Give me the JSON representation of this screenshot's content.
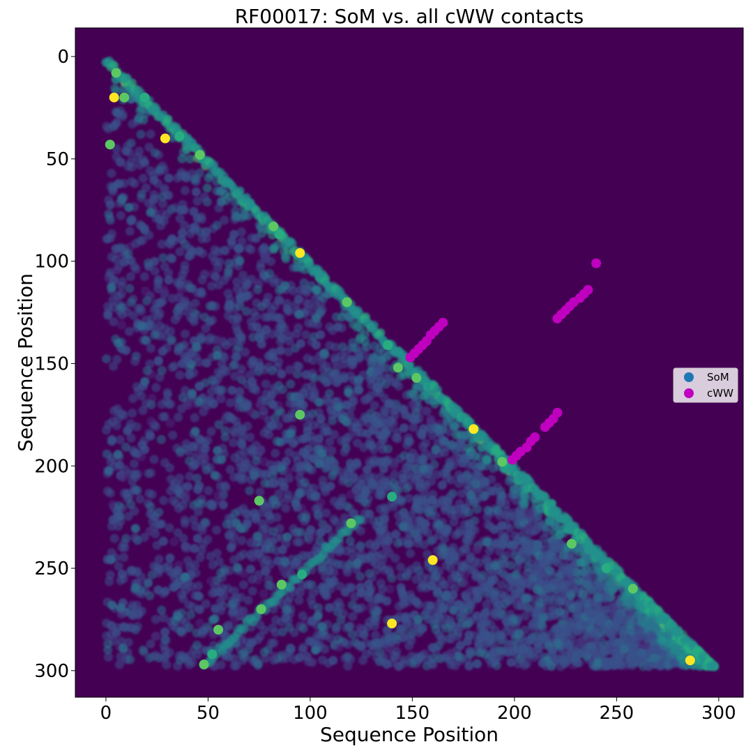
{
  "chart_data": {
    "type": "scatter",
    "title": "RF00017: SoM vs. all cWW contacts",
    "xlabel": "Sequence Position",
    "ylabel": "Sequence Position",
    "xlim": [
      -15,
      312
    ],
    "ylim": [
      313,
      -14
    ],
    "y_inverted": true,
    "x_ticks": [
      0,
      50,
      100,
      150,
      200,
      250,
      300
    ],
    "y_ticks": [
      0,
      50,
      100,
      150,
      200,
      250,
      300
    ],
    "grid": false,
    "background_color": "#440154",
    "legend_position": "center-right",
    "series": [
      {
        "name": "SoM",
        "color": "#1f77b4",
        "colormap": "viridis",
        "shape": "lower-triangle matrix, x 0-298, y >= x",
        "highlights": [
          {
            "x": 4,
            "y": 20
          },
          {
            "x": 5,
            "y": 8
          },
          {
            "x": 9,
            "y": 20
          },
          {
            "x": 19,
            "y": 20
          },
          {
            "x": 2,
            "y": 43
          },
          {
            "x": 29,
            "y": 40
          },
          {
            "x": 36,
            "y": 39
          },
          {
            "x": 46,
            "y": 48
          },
          {
            "x": 82,
            "y": 83
          },
          {
            "x": 85,
            "y": 87
          },
          {
            "x": 95,
            "y": 96
          },
          {
            "x": 118,
            "y": 120
          },
          {
            "x": 138,
            "y": 141
          },
          {
            "x": 143,
            "y": 152
          },
          {
            "x": 152,
            "y": 157
          },
          {
            "x": 180,
            "y": 182
          },
          {
            "x": 194,
            "y": 198
          },
          {
            "x": 228,
            "y": 238
          },
          {
            "x": 245,
            "y": 250
          },
          {
            "x": 258,
            "y": 260
          },
          {
            "x": 286,
            "y": 295
          },
          {
            "x": 52,
            "y": 292
          },
          {
            "x": 48,
            "y": 297
          },
          {
            "x": 95,
            "y": 175
          },
          {
            "x": 140,
            "y": 215
          },
          {
            "x": 140,
            "y": 277
          },
          {
            "x": 120,
            "y": 228
          },
          {
            "x": 96,
            "y": 253
          },
          {
            "x": 86,
            "y": 258
          },
          {
            "x": 76,
            "y": 270
          },
          {
            "x": 160,
            "y": 246
          },
          {
            "x": 75,
            "y": 217
          },
          {
            "x": 55,
            "y": 280
          }
        ]
      },
      {
        "name": "cWW",
        "color": "#bf00bf",
        "points": [
          {
            "x": 240,
            "y": 101
          },
          {
            "x": 236,
            "y": 114
          },
          {
            "x": 234,
            "y": 116
          },
          {
            "x": 232,
            "y": 118
          },
          {
            "x": 229,
            "y": 120
          },
          {
            "x": 227,
            "y": 122
          },
          {
            "x": 225,
            "y": 124
          },
          {
            "x": 223,
            "y": 126
          },
          {
            "x": 221,
            "y": 128
          },
          {
            "x": 165,
            "y": 130
          },
          {
            "x": 163,
            "y": 132
          },
          {
            "x": 161,
            "y": 134
          },
          {
            "x": 159,
            "y": 136
          },
          {
            "x": 157,
            "y": 139
          },
          {
            "x": 155,
            "y": 141
          },
          {
            "x": 153,
            "y": 143
          },
          {
            "x": 151,
            "y": 145
          },
          {
            "x": 149,
            "y": 147
          },
          {
            "x": 221,
            "y": 174
          },
          {
            "x": 219,
            "y": 177
          },
          {
            "x": 217,
            "y": 179
          },
          {
            "x": 215,
            "y": 181
          },
          {
            "x": 210,
            "y": 186
          },
          {
            "x": 208,
            "y": 188
          },
          {
            "x": 206,
            "y": 191
          },
          {
            "x": 203,
            "y": 193
          },
          {
            "x": 201,
            "y": 195
          },
          {
            "x": 199,
            "y": 197
          }
        ]
      }
    ]
  }
}
